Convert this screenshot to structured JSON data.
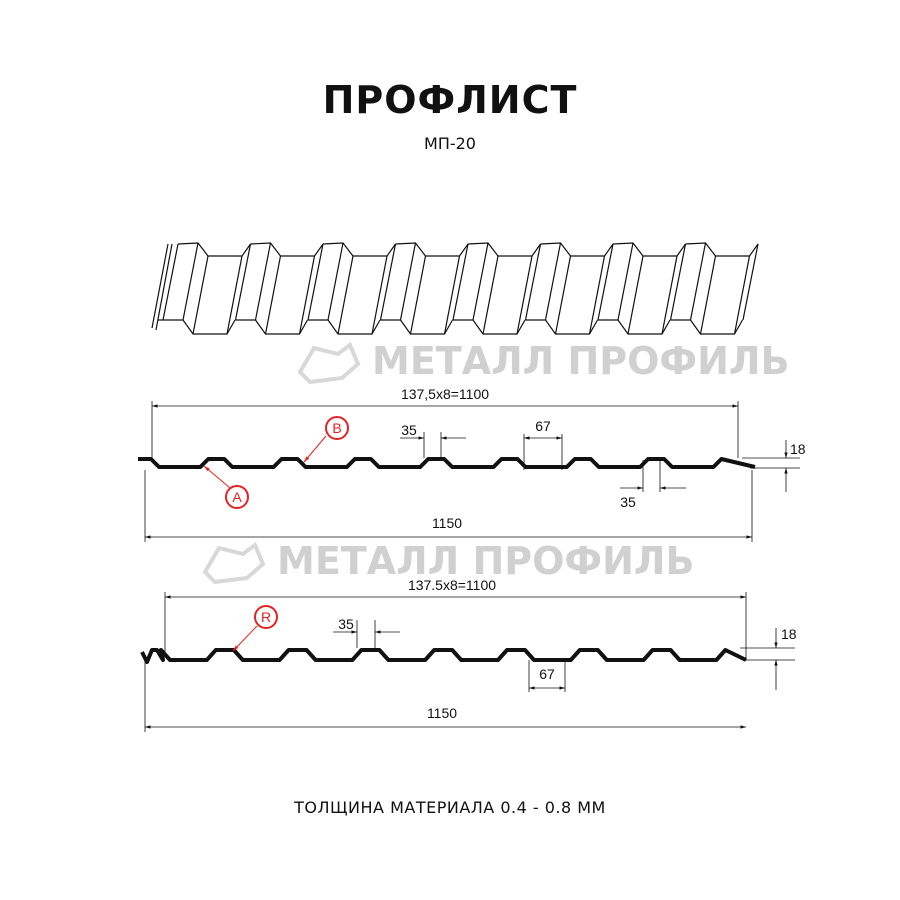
{
  "header": {
    "title": "ПРОФЛИСТ",
    "subtitle": "МП-20"
  },
  "watermark": "МЕТАЛЛ ПРОФИЛЬ",
  "profile_a": {
    "dim_top": "137,5x8=1100",
    "dim_bottom": "1150",
    "dim_top_flange": "35",
    "dim_bottom_flange": "35",
    "dim_pitch_bottom": "67",
    "dim_height": "18",
    "marker_a": "A",
    "marker_b": "B"
  },
  "profile_r": {
    "dim_top": "137.5x8=1100",
    "dim_bottom": "1150",
    "dim_top_flange": "35",
    "dim_pitch_bottom": "67",
    "dim_height": "18",
    "marker_r": "R"
  },
  "colors": {
    "profile": "#111111",
    "marker": "#e32222",
    "watermark": "#d0d0d0"
  },
  "footer": {
    "thickness": "ТОЛЩИНА МАТЕРИАЛА 0.4 - 0.8 ММ"
  }
}
